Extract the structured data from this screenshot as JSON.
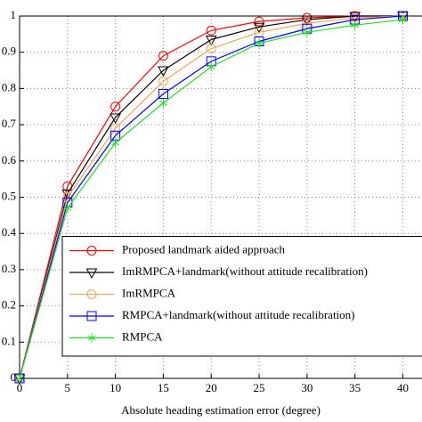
{
  "chart_data": {
    "type": "line",
    "x_label": "Absolute heading estimation error (degree)",
    "x": [
      0,
      5,
      10,
      15,
      20,
      25,
      30,
      35,
      40
    ],
    "series": [
      {
        "name": "Proposed landmark aided approach",
        "color": "#ff0000",
        "marker": "circle",
        "values": [
          0,
          0.53,
          0.75,
          0.89,
          0.96,
          0.985,
          0.995,
          1,
          1
        ]
      },
      {
        "name": "ImRMPCA+landmark(without attitude recalibration)",
        "color": "#000000",
        "marker": "triangle-down",
        "values": [
          0,
          0.51,
          0.72,
          0.85,
          0.935,
          0.97,
          0.99,
          1,
          1
        ]
      },
      {
        "name": "ImRMPCA",
        "color": "#f2a65a",
        "marker": "circle",
        "values": [
          0,
          0.5,
          0.69,
          0.82,
          0.91,
          0.955,
          0.98,
          0.995,
          1
        ]
      },
      {
        "name": "RMPCA+landmark(without attitude recalibration)",
        "color": "#0000ff",
        "marker": "square",
        "values": [
          0,
          0.485,
          0.67,
          0.785,
          0.875,
          0.93,
          0.965,
          0.99,
          1
        ]
      },
      {
        "name": "RMPCA",
        "color": "#22dd22",
        "marker": "star",
        "values": [
          0,
          0.47,
          0.65,
          0.76,
          0.86,
          0.925,
          0.955,
          0.975,
          0.99
        ]
      }
    ],
    "xlim": [
      0,
      42
    ],
    "xticks": [
      0,
      5,
      10,
      15,
      20,
      25,
      30,
      35,
      40
    ],
    "ylim": [
      0,
      1
    ],
    "yticks": [
      0,
      0.1,
      0.2,
      0.3,
      0.4,
      0.5,
      0.6,
      0.7,
      0.8,
      0.9,
      1
    ],
    "grid": true,
    "legend": "lower right"
  }
}
